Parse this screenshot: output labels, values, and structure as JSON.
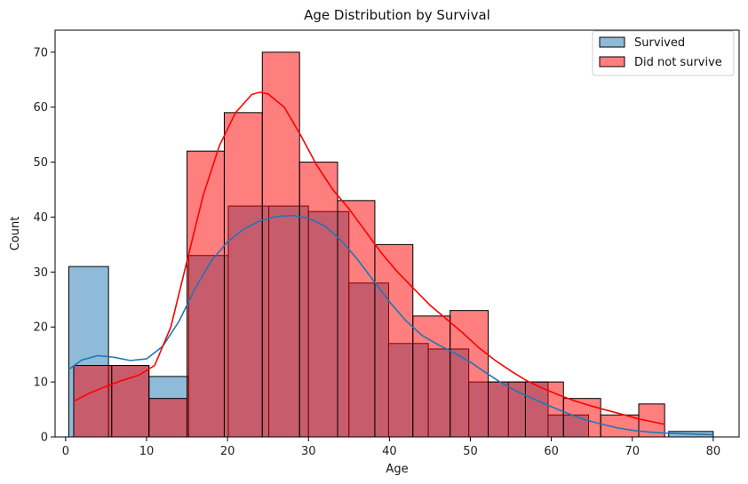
{
  "chart_data": {
    "type": "histogram",
    "title": "Age Distribution by Survival",
    "xlabel": "Age",
    "ylabel": "Count",
    "xlim": [
      -1.3,
      83.2
    ],
    "ylim": [
      0,
      74
    ],
    "xticks": [
      0,
      10,
      20,
      30,
      40,
      50,
      60,
      70,
      80
    ],
    "yticks": [
      0,
      10,
      20,
      30,
      40,
      50,
      60,
      70
    ],
    "grid": false,
    "legend_position": "top-right",
    "series": [
      {
        "name": "Survived",
        "color": "#1f77b4",
        "bar_fill": "#8bb8da",
        "bins": [
          {
            "x0": 0.4,
            "x1": 5.3,
            "count": 31
          },
          {
            "x0": 5.3,
            "x1": 10.3,
            "count": 13
          },
          {
            "x0": 10.3,
            "x1": 15.2,
            "count": 11
          },
          {
            "x0": 15.2,
            "x1": 20.1,
            "count": 33
          },
          {
            "x0": 20.1,
            "x1": 25.1,
            "count": 42
          },
          {
            "x0": 25.1,
            "x1": 30.0,
            "count": 42
          },
          {
            "x0": 30.0,
            "x1": 35.0,
            "count": 41
          },
          {
            "x0": 35.0,
            "x1": 39.9,
            "count": 28
          },
          {
            "x0": 39.9,
            "x1": 44.8,
            "count": 17
          },
          {
            "x0": 44.8,
            "x1": 49.8,
            "count": 16
          },
          {
            "x0": 49.8,
            "x1": 54.7,
            "count": 10
          },
          {
            "x0": 54.7,
            "x1": 59.6,
            "count": 10
          },
          {
            "x0": 59.6,
            "x1": 64.6,
            "count": 4
          },
          {
            "x0": 64.6,
            "x1": 69.5,
            "count": 0
          },
          {
            "x0": 69.5,
            "x1": 74.5,
            "count": 0
          },
          {
            "x0": 74.5,
            "x1": 80.0,
            "count": 1
          }
        ],
        "kde": [
          [
            0.4,
            12.3
          ],
          [
            2,
            14
          ],
          [
            4,
            14.8
          ],
          [
            6,
            14.5
          ],
          [
            8,
            13.9
          ],
          [
            10,
            14.2
          ],
          [
            12,
            16.5
          ],
          [
            14,
            21
          ],
          [
            16,
            27
          ],
          [
            18,
            32
          ],
          [
            20,
            35.5
          ],
          [
            22,
            37.8
          ],
          [
            24,
            39.3
          ],
          [
            26,
            40.1
          ],
          [
            28,
            40.3
          ],
          [
            30,
            39.8
          ],
          [
            32,
            38.4
          ],
          [
            34,
            35.8
          ],
          [
            36,
            32.4
          ],
          [
            38,
            28.5
          ],
          [
            40,
            24.6
          ],
          [
            42,
            21.2
          ],
          [
            44,
            18.5
          ],
          [
            46,
            16.8
          ],
          [
            48,
            15.3
          ],
          [
            50,
            13.6
          ],
          [
            52,
            11.6
          ],
          [
            54,
            9.7
          ],
          [
            56,
            8.1
          ],
          [
            58,
            6.8
          ],
          [
            60,
            5.5
          ],
          [
            62,
            4.3
          ],
          [
            64,
            3.2
          ],
          [
            66,
            2.4
          ],
          [
            68,
            1.7
          ],
          [
            70,
            1.2
          ],
          [
            72,
            0.9
          ],
          [
            74,
            0.7
          ],
          [
            76,
            0.6
          ],
          [
            78,
            0.5
          ],
          [
            80,
            0.4
          ]
        ]
      },
      {
        "name": "Did not survive",
        "color": "#ff0000",
        "bar_fill": "#ff8080",
        "bins": [
          {
            "x0": 1.0,
            "x1": 5.7,
            "count": 13
          },
          {
            "x0": 5.7,
            "x1": 10.3,
            "count": 13
          },
          {
            "x0": 10.3,
            "x1": 15.0,
            "count": 7
          },
          {
            "x0": 15.0,
            "x1": 19.6,
            "count": 52
          },
          {
            "x0": 19.6,
            "x1": 24.3,
            "count": 59
          },
          {
            "x0": 24.3,
            "x1": 28.9,
            "count": 70
          },
          {
            "x0": 28.9,
            "x1": 33.6,
            "count": 50
          },
          {
            "x0": 33.6,
            "x1": 38.2,
            "count": 43
          },
          {
            "x0": 38.2,
            "x1": 42.9,
            "count": 35
          },
          {
            "x0": 42.9,
            "x1": 47.5,
            "count": 22
          },
          {
            "x0": 47.5,
            "x1": 52.2,
            "count": 23
          },
          {
            "x0": 52.2,
            "x1": 56.8,
            "count": 10
          },
          {
            "x0": 56.8,
            "x1": 61.5,
            "count": 10
          },
          {
            "x0": 61.5,
            "x1": 66.1,
            "count": 7
          },
          {
            "x0": 66.1,
            "x1": 70.8,
            "count": 4
          },
          {
            "x0": 70.8,
            "x1": 74.0,
            "count": 6
          }
        ],
        "kde": [
          [
            1.0,
            6.5
          ],
          [
            3,
            8
          ],
          [
            5,
            9.2
          ],
          [
            7,
            10.3
          ],
          [
            9,
            11.2
          ],
          [
            11,
            13
          ],
          [
            13,
            20
          ],
          [
            15,
            32
          ],
          [
            17,
            44
          ],
          [
            19,
            53
          ],
          [
            21,
            59
          ],
          [
            23,
            62.3
          ],
          [
            24,
            62.7
          ],
          [
            25,
            62.4
          ],
          [
            27,
            60
          ],
          [
            29,
            55
          ],
          [
            31,
            49.5
          ],
          [
            33,
            45
          ],
          [
            35,
            41.5
          ],
          [
            37,
            37.5
          ],
          [
            39,
            33.5
          ],
          [
            41,
            30
          ],
          [
            43,
            27
          ],
          [
            45,
            24
          ],
          [
            47,
            21.5
          ],
          [
            49,
            19
          ],
          [
            51,
            16.3
          ],
          [
            53,
            14
          ],
          [
            55,
            12
          ],
          [
            57,
            10.2
          ],
          [
            59,
            8.8
          ],
          [
            61,
            7.6
          ],
          [
            63,
            6.5
          ],
          [
            65,
            5.6
          ],
          [
            67,
            4.8
          ],
          [
            69,
            4.0
          ],
          [
            71,
            3.2
          ],
          [
            73,
            2.6
          ],
          [
            74,
            2.3
          ]
        ]
      }
    ]
  }
}
